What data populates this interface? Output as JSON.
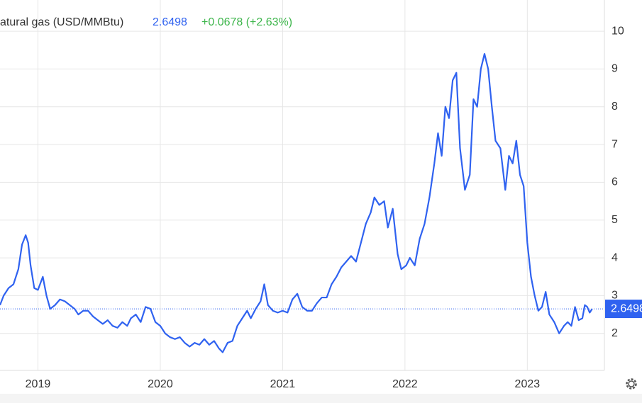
{
  "chart_data": {
    "type": "line",
    "title": "atural gas (USD/MMBtu)",
    "price": 2.6498,
    "change": "+0.0678 (+2.63%)",
    "color": "#2f62f0",
    "grid": true,
    "xlim": [
      2018.69,
      2023.63
    ],
    "xticks": [
      2019,
      2020,
      2021,
      2022,
      2023
    ],
    "ylim": [
      1.02,
      10.8
    ],
    "yticks": [
      2,
      3,
      4,
      5,
      6,
      7,
      8,
      9,
      10
    ],
    "x": [
      2018.69,
      2018.72,
      2018.76,
      2018.8,
      2018.84,
      2018.87,
      2018.9,
      2018.92,
      2018.94,
      2018.97,
      2019.0,
      2019.04,
      2019.07,
      2019.1,
      2019.14,
      2019.18,
      2019.22,
      2019.26,
      2019.3,
      2019.33,
      2019.37,
      2019.41,
      2019.45,
      2019.49,
      2019.53,
      2019.57,
      2019.61,
      2019.65,
      2019.69,
      2019.73,
      2019.76,
      2019.8,
      2019.84,
      2019.88,
      2019.92,
      2019.96,
      2020.0,
      2020.04,
      2020.08,
      2020.12,
      2020.16,
      2020.2,
      2020.24,
      2020.28,
      2020.32,
      2020.36,
      2020.4,
      2020.44,
      2020.48,
      2020.51,
      2020.55,
      2020.59,
      2020.63,
      2020.67,
      2020.71,
      2020.74,
      2020.78,
      2020.82,
      2020.85,
      2020.88,
      2020.92,
      2020.96,
      2021.0,
      2021.04,
      2021.08,
      2021.12,
      2021.16,
      2021.2,
      2021.24,
      2021.28,
      2021.32,
      2021.36,
      2021.4,
      2021.44,
      2021.48,
      2021.52,
      2021.56,
      2021.6,
      2021.64,
      2021.68,
      2021.72,
      2021.75,
      2021.79,
      2021.83,
      2021.86,
      2021.9,
      2021.94,
      2021.97,
      2022.01,
      2022.04,
      2022.08,
      2022.12,
      2022.16,
      2022.2,
      2022.24,
      2022.27,
      2022.3,
      2022.33,
      2022.36,
      2022.39,
      2022.42,
      2022.45,
      2022.49,
      2022.53,
      2022.56,
      2022.59,
      2022.62,
      2022.65,
      2022.68,
      2022.71,
      2022.74,
      2022.78,
      2022.82,
      2022.85,
      2022.88,
      2022.91,
      2022.94,
      2022.97,
      2023.0,
      2023.03,
      2023.06,
      2023.09,
      2023.12,
      2023.15,
      2023.18,
      2023.22,
      2023.26,
      2023.3,
      2023.33,
      2023.36,
      2023.39,
      2023.42,
      2023.45,
      2023.47,
      2023.49,
      2023.51,
      2023.53
    ],
    "values": [
      2.75,
      3.0,
      3.2,
      3.3,
      3.7,
      4.35,
      4.6,
      4.4,
      3.8,
      3.2,
      3.15,
      3.5,
      3.0,
      2.65,
      2.75,
      2.9,
      2.85,
      2.75,
      2.65,
      2.5,
      2.6,
      2.6,
      2.45,
      2.35,
      2.25,
      2.35,
      2.2,
      2.15,
      2.3,
      2.2,
      2.4,
      2.5,
      2.3,
      2.7,
      2.65,
      2.3,
      2.2,
      2.0,
      1.9,
      1.85,
      1.9,
      1.75,
      1.65,
      1.75,
      1.7,
      1.85,
      1.7,
      1.8,
      1.6,
      1.5,
      1.75,
      1.8,
      2.2,
      2.4,
      2.6,
      2.4,
      2.65,
      2.85,
      3.3,
      2.75,
      2.6,
      2.55,
      2.6,
      2.55,
      2.9,
      3.05,
      2.7,
      2.6,
      2.6,
      2.8,
      2.95,
      2.95,
      3.3,
      3.5,
      3.75,
      3.9,
      4.05,
      3.9,
      4.4,
      4.9,
      5.2,
      5.6,
      5.4,
      5.5,
      4.8,
      5.3,
      4.1,
      3.7,
      3.8,
      4.0,
      3.8,
      4.5,
      4.9,
      5.6,
      6.5,
      7.3,
      6.7,
      8.0,
      7.7,
      8.7,
      8.9,
      6.9,
      5.8,
      6.2,
      8.2,
      8.0,
      9.0,
      9.4,
      9.0,
      8.0,
      7.1,
      6.9,
      5.8,
      6.7,
      6.5,
      7.1,
      6.2,
      5.9,
      4.4,
      3.5,
      3.0,
      2.6,
      2.7,
      3.1,
      2.5,
      2.3,
      2.0,
      2.2,
      2.3,
      2.2,
      2.7,
      2.35,
      2.4,
      2.75,
      2.7,
      2.55,
      2.65
    ]
  }
}
